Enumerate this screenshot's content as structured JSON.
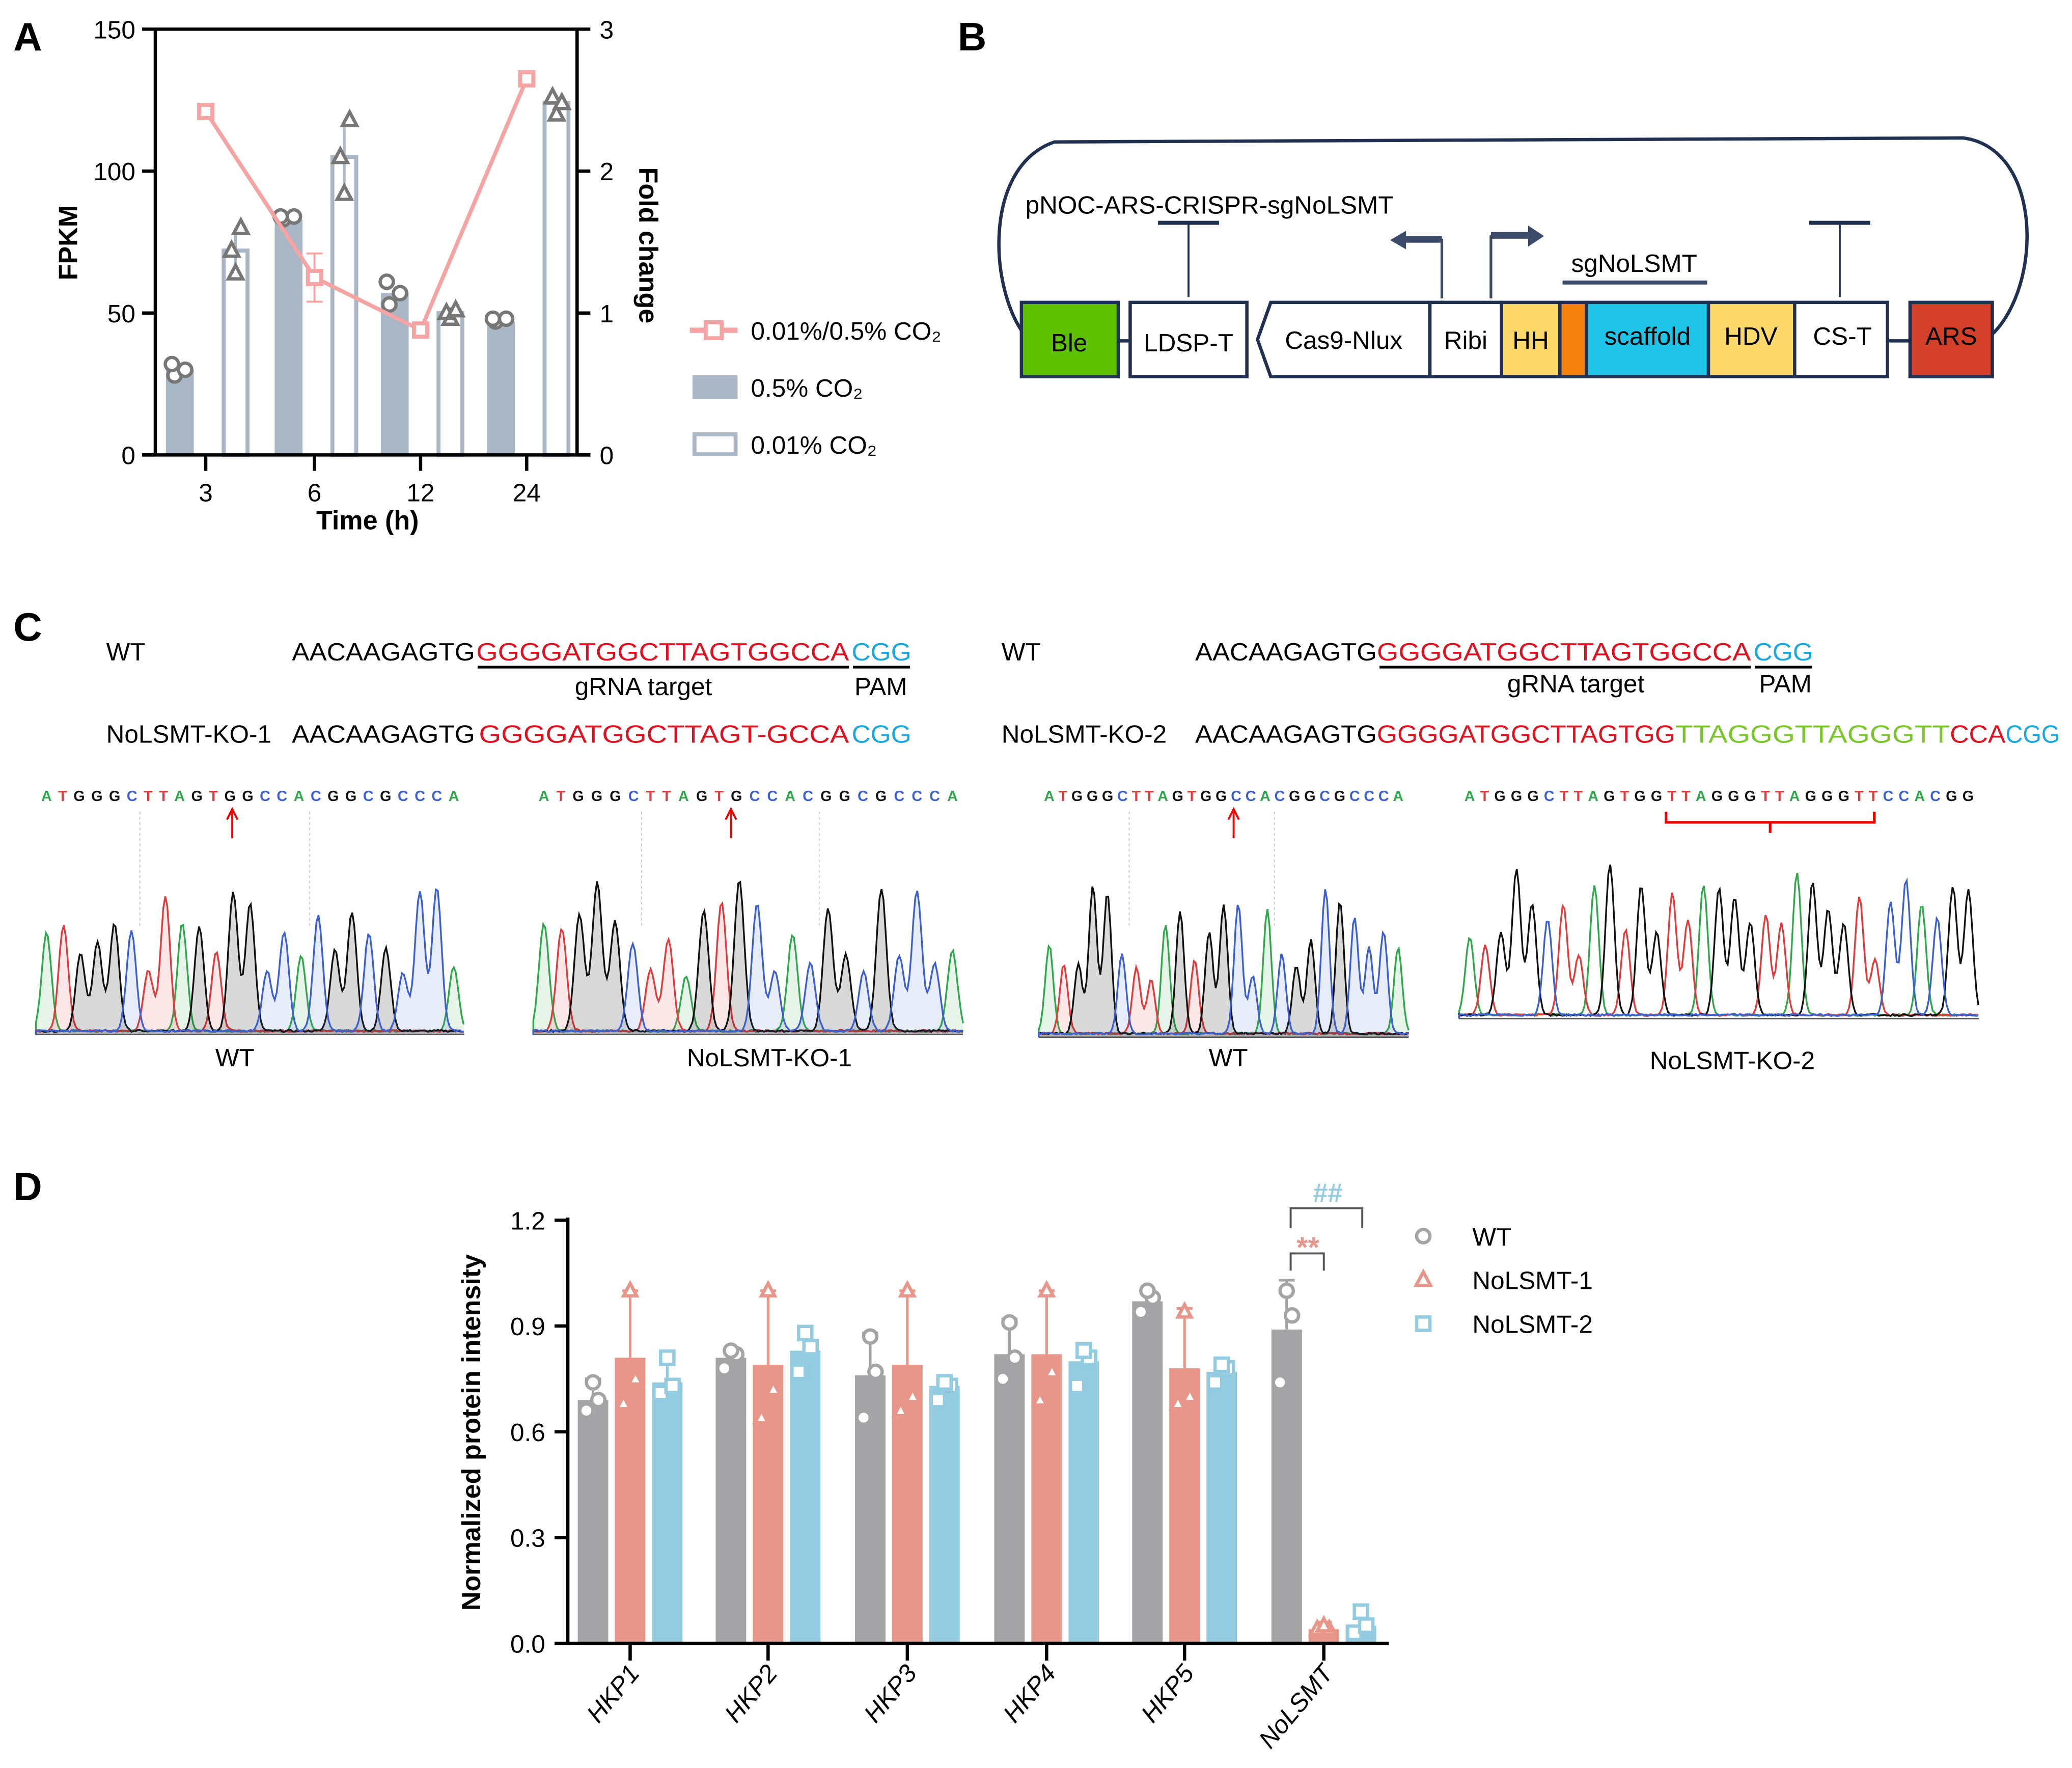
{
  "panel_labels": {
    "a": "A",
    "b": "B",
    "c": "C",
    "d": "D"
  },
  "colors": {
    "bar_a": "#a9b6c6",
    "line_a": "#f5a3a3",
    "wt": "#a4a4a7",
    "ko1": "#e8958a",
    "ko2": "#93cbe0",
    "seq_red": "#e0101e",
    "seq_blue": "#1ba7e0",
    "seq_green": "#7ac52a",
    "ble": "#5ec100",
    "hh": "#fdd96b",
    "orange": "#f5820f",
    "scaffold": "#1ec3e8",
    "hdv": "#fdd96b",
    "ars": "#d2402a",
    "construct_line": "#1f3050"
  },
  "chart_data": [
    {
      "type": "bar",
      "panel": "A",
      "xlabel": "Time (h)",
      "ylabel": "FPKM",
      "y2label": "Fold change",
      "categories": [
        "3",
        "6",
        "12",
        "24"
      ],
      "ylim": [
        0,
        150
      ],
      "y2lim": [
        0,
        3
      ],
      "yticks": [
        "0",
        "50",
        "100",
        "150"
      ],
      "y2ticks": [
        "0",
        "1",
        "2",
        "3"
      ],
      "series": [
        {
          "name": "0.5% CO₂",
          "kind": "bar",
          "values": [
            30,
            83,
            57,
            47
          ],
          "points": [
            [
              28,
              30,
              32
            ],
            [
              83,
              84,
              84
            ],
            [
              53,
              57,
              61
            ],
            [
              47,
              48,
              48
            ]
          ]
        },
        {
          "name": "0.01% CO₂",
          "kind": "bar-hollow",
          "values": [
            72,
            105,
            50,
            124
          ],
          "points": [
            [
              64,
              72,
              80
            ],
            [
              92,
              105,
              118
            ],
            [
              48,
              50,
              51
            ],
            [
              120,
              126,
              124
            ]
          ]
        },
        {
          "name": "0.01%/0.5% CO₂",
          "kind": "line",
          "axis": "right",
          "values": [
            2.42,
            1.25,
            0.88,
            2.65
          ],
          "err": [
            0,
            0.17,
            0,
            0
          ]
        }
      ],
      "legend": [
        "0.01%/0.5% CO₂",
        "0.5% CO₂",
        "0.01% CO₂"
      ],
      "legend_placement": "right"
    },
    {
      "type": "bar",
      "panel": "D",
      "ylabel": "Normalized protein intensity",
      "categories": [
        "HKP1",
        "HKP2",
        "HKP3",
        "HKP4",
        "HKP5",
        "NoLSMT"
      ],
      "ylim": [
        0,
        1.2
      ],
      "yticks": [
        "0.0",
        "0.3",
        "0.6",
        "0.9",
        "1.2"
      ],
      "series": [
        {
          "name": "WT",
          "values": [
            0.69,
            0.81,
            0.76,
            0.82,
            0.97,
            0.89
          ],
          "upper": [
            0.75,
            0.83,
            0.88,
            0.92,
            1.0,
            1.03
          ],
          "points": [
            [
              0.66,
              0.69,
              0.74
            ],
            [
              0.78,
              0.82,
              0.83
            ],
            [
              0.64,
              0.77,
              0.87
            ],
            [
              0.75,
              0.81,
              0.91
            ],
            [
              0.94,
              0.98,
              1.0
            ],
            [
              0.74,
              0.93,
              1.0
            ]
          ]
        },
        {
          "name": "NoLSMT-1",
          "values": [
            0.81,
            0.79,
            0.79,
            0.82,
            0.78,
            0.04
          ],
          "upper": [
            1.0,
            1.0,
            1.0,
            1.0,
            0.95,
            0.06
          ],
          "points": [
            [
              0.68,
              0.75,
              1.0
            ],
            [
              0.64,
              0.72,
              1.0
            ],
            [
              0.66,
              0.7,
              1.0
            ],
            [
              0.69,
              0.77,
              1.0
            ],
            [
              0.68,
              0.7,
              0.94
            ],
            [
              0.04,
              0.04,
              0.05
            ]
          ]
        },
        {
          "name": "NoLSMT-2",
          "values": [
            0.74,
            0.83,
            0.73,
            0.8,
            0.77,
            0.05
          ],
          "upper": [
            0.82,
            0.89,
            0.76,
            0.85,
            0.81,
            0.09
          ],
          "points": [
            [
              0.71,
              0.73,
              0.81
            ],
            [
              0.77,
              0.84,
              0.88
            ],
            [
              0.69,
              0.73,
              0.74
            ],
            [
              0.73,
              0.81,
              0.83
            ],
            [
              0.74,
              0.78,
              0.79
            ],
            [
              0.03,
              0.05,
              0.09
            ]
          ]
        }
      ],
      "annotations": [
        {
          "text": "**",
          "compare": [
            "WT",
            "NoLSMT-1"
          ]
        },
        {
          "text": "##",
          "compare": [
            "WT",
            "NoLSMT-2"
          ]
        }
      ],
      "legend_placement": "right"
    }
  ],
  "panel_b": {
    "title": "pNOC-ARS-CRISPR-sgNoLSMT",
    "sg_label": "sgNoLSMT",
    "boxes": {
      "ble": "Ble",
      "ldsp": "LDSP-T",
      "cas9": "Cas9-Nlux",
      "ribi": "Ribi",
      "hh": "HH",
      "scaffold": "scaffold",
      "hdv": "HDV",
      "cst": "CS-T",
      "ars": "ARS"
    }
  },
  "panel_c": {
    "left": {
      "wt_label": "WT",
      "wt_seq": {
        "prefix": "AACAAGAGTG",
        "target": "GGGGATGGCTTAGTGGCCA",
        "pam": "CGG"
      },
      "target_label": "gRNA target",
      "pam_label": "PAM",
      "ko_label": "NoLSMT-KO-1",
      "ko_seq": {
        "prefix": "AACAAGAGTG",
        "target": "GGGGATGGCTTAGT-GCCA",
        "pam": "CGG"
      }
    },
    "right": {
      "wt_label": "WT",
      "wt_seq": {
        "prefix": "AACAAGAGTG",
        "target": "GGGGATGGCTTAGTGGCCA",
        "pam": "CGG"
      },
      "target_label": "gRNA target",
      "pam_label": "PAM",
      "ko_label": "NoLSMT-KO-2",
      "ko_seq": {
        "prefix": "AACAAGAGTG",
        "target": "GGGGATGGCTTAGTGG",
        "insert": "TTAGGGTTAGGGTT",
        "target2": "CCA",
        "pam": "CGG"
      }
    },
    "traces": [
      {
        "bases": "ATGGGCTTAGTGGCCACGGCGCCCA",
        "label": "WT"
      },
      {
        "bases": "ATGGGCTTAGTGCCACGGCGCCCA",
        "label": "NoLSMT-KO-1"
      },
      {
        "bases": "ATGGGCTTAGTGGCCACGGCGCCCA",
        "label": "WT"
      },
      {
        "bases": "ATGGGCTTAGTGGTTAGGGTTAGGGTTCCACGG",
        "label": "NoLSMT-KO-2"
      }
    ]
  }
}
